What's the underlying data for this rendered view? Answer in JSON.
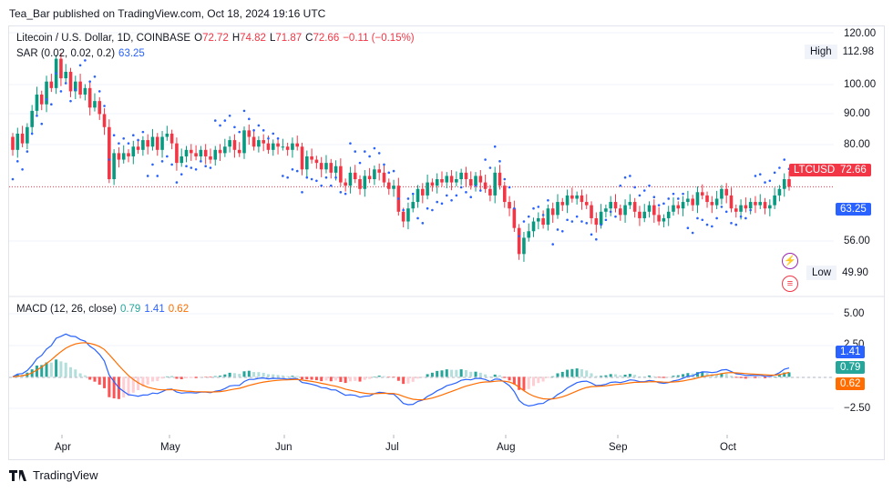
{
  "header": {
    "published": "Tea_Bar published on TradingView.com, Oct 18, 2024 19:16 UTC"
  },
  "legend": {
    "symbol": "Litecoin / U.S. Dollar, 1D, COINBASE",
    "o_label": "O",
    "o_value": "72.72",
    "h_label": "H",
    "h_value": "74.82",
    "l_label": "L",
    "l_value": "71.87",
    "c_label": "C",
    "c_value": "72.66",
    "change": "−0.11 (−0.15%)",
    "sar_label": "SAR (0.02, 0.02, 0.2)",
    "sar_value": "63.25",
    "macd_label": "MACD (12, 26, close)",
    "macd_hist": "0.79",
    "macd_line": "1.41",
    "macd_signal": "0.62"
  },
  "price_axis": {
    "ticks": [
      "120.00",
      "100.00",
      "90.00",
      "80.00",
      "56.00"
    ],
    "high_label": "High",
    "high_value": "112.98",
    "low_label": "Low",
    "low_value": "49.90",
    "ticker_tag": "LTCUSD",
    "last_price": "72.66",
    "sar_tag": "63.25"
  },
  "macd_axis": {
    "ticks": [
      "5.00",
      "2.50",
      "−2.50"
    ],
    "line_tag": "1.41",
    "hist_tag": "0.79",
    "signal_tag": "0.62"
  },
  "time_axis": {
    "labels": [
      "Apr",
      "May",
      "Jun",
      "Jul",
      "Aug",
      "Sep",
      "Oct"
    ]
  },
  "footer": {
    "brand": "TradingView"
  },
  "colors": {
    "up": "#089981",
    "down": "#f23645",
    "macd": "#2962ff",
    "signal": "#ff6d00",
    "sar": "#2962ff"
  },
  "chart_data": {
    "type": "candlestick",
    "title": "Litecoin / U.S. Dollar, 1D, COINBASE",
    "price_range": [
      49.9,
      112.98
    ],
    "last_close": 72.66,
    "price_series_approx": [
      [
        88,
        84
      ],
      [
        84,
        89
      ],
      [
        89,
        86
      ],
      [
        86,
        91
      ],
      [
        91,
        96
      ],
      [
        96,
        101
      ],
      [
        101,
        98
      ],
      [
        98,
        105
      ],
      [
        105,
        103
      ],
      [
        103,
        112
      ],
      [
        112,
        106
      ],
      [
        106,
        108
      ],
      [
        108,
        102
      ],
      [
        102,
        105
      ],
      [
        105,
        101
      ],
      [
        101,
        103
      ],
      [
        103,
        97
      ],
      [
        97,
        99
      ],
      [
        99,
        95
      ],
      [
        95,
        91
      ],
      [
        91,
        75
      ],
      [
        75,
        83
      ],
      [
        83,
        81
      ],
      [
        81,
        83
      ],
      [
        83,
        82
      ],
      [
        82,
        85
      ],
      [
        85,
        84
      ],
      [
        84,
        87
      ],
      [
        87,
        85
      ],
      [
        85,
        88
      ],
      [
        88,
        84
      ],
      [
        84,
        88
      ],
      [
        88,
        89
      ],
      [
        89,
        86
      ],
      [
        86,
        80
      ],
      [
        80,
        82
      ],
      [
        82,
        84
      ],
      [
        84,
        83
      ],
      [
        83,
        82
      ],
      [
        82,
        84
      ],
      [
        84,
        82
      ],
      [
        82,
        81
      ],
      [
        81,
        84
      ],
      [
        84,
        83
      ],
      [
        83,
        85
      ],
      [
        85,
        87
      ],
      [
        87,
        84
      ],
      [
        84,
        83
      ],
      [
        83,
        90
      ],
      [
        90,
        88
      ],
      [
        88,
        85
      ],
      [
        85,
        87
      ],
      [
        87,
        86
      ],
      [
        86,
        84
      ],
      [
        84,
        86
      ],
      [
        86,
        85
      ],
      [
        85,
        85
      ],
      [
        85,
        84
      ],
      [
        84,
        86
      ],
      [
        86,
        85
      ],
      [
        85,
        78
      ],
      [
        78,
        82
      ],
      [
        82,
        81
      ],
      [
        81,
        80
      ],
      [
        80,
        78
      ],
      [
        78,
        80
      ],
      [
        80,
        77
      ],
      [
        77,
        79
      ],
      [
        79,
        74
      ],
      [
        74,
        73
      ],
      [
        73,
        77
      ],
      [
        77,
        75
      ],
      [
        75,
        72
      ],
      [
        72,
        76
      ],
      [
        76,
        75
      ],
      [
        75,
        78
      ],
      [
        78,
        77
      ],
      [
        77,
        74
      ],
      [
        74,
        72
      ],
      [
        72,
        73
      ],
      [
        73,
        65
      ],
      [
        65,
        62
      ],
      [
        62,
        66
      ],
      [
        66,
        68
      ],
      [
        68,
        72
      ],
      [
        72,
        70
      ],
      [
        70,
        74
      ],
      [
        74,
        73
      ],
      [
        73,
        75
      ],
      [
        75,
        74
      ],
      [
        74,
        76
      ],
      [
        76,
        74
      ],
      [
        74,
        75
      ],
      [
        75,
        77
      ],
      [
        77,
        75
      ],
      [
        75,
        73
      ],
      [
        73,
        76
      ],
      [
        76,
        74
      ],
      [
        74,
        72
      ],
      [
        72,
        70
      ],
      [
        70,
        77
      ],
      [
        77,
        73
      ],
      [
        73,
        68
      ],
      [
        68,
        66
      ],
      [
        66,
        60
      ],
      [
        60,
        52
      ],
      [
        52,
        57
      ],
      [
        57,
        59
      ],
      [
        59,
        62
      ],
      [
        62,
        63
      ],
      [
        63,
        61
      ],
      [
        61,
        66
      ],
      [
        66,
        64
      ],
      [
        64,
        68
      ],
      [
        68,
        67
      ],
      [
        67,
        70
      ],
      [
        70,
        69
      ],
      [
        69,
        70
      ],
      [
        70,
        68
      ],
      [
        68,
        67
      ],
      [
        67,
        63
      ],
      [
        63,
        61
      ],
      [
        61,
        65
      ],
      [
        65,
        66
      ],
      [
        66,
        68
      ],
      [
        68,
        66
      ],
      [
        66,
        64
      ],
      [
        64,
        67
      ],
      [
        67,
        68
      ],
      [
        68,
        65
      ],
      [
        65,
        63
      ],
      [
        63,
        65
      ],
      [
        65,
        67
      ],
      [
        67,
        64
      ],
      [
        64,
        62
      ],
      [
        62,
        63
      ],
      [
        63,
        65
      ],
      [
        65,
        67
      ],
      [
        67,
        66
      ],
      [
        66,
        68
      ],
      [
        68,
        69
      ],
      [
        69,
        67
      ],
      [
        67,
        71
      ],
      [
        71,
        70
      ],
      [
        70,
        68
      ],
      [
        68,
        67
      ],
      [
        67,
        69
      ],
      [
        69,
        72
      ],
      [
        72,
        70
      ],
      [
        70,
        66
      ],
      [
        66,
        65
      ],
      [
        65,
        67
      ],
      [
        67,
        66
      ],
      [
        66,
        68
      ],
      [
        68,
        67
      ],
      [
        67,
        68
      ],
      [
        68,
        66
      ],
      [
        66,
        67
      ],
      [
        67,
        70
      ],
      [
        70,
        72
      ],
      [
        72,
        75
      ],
      [
        75,
        72.66
      ]
    ]
  }
}
